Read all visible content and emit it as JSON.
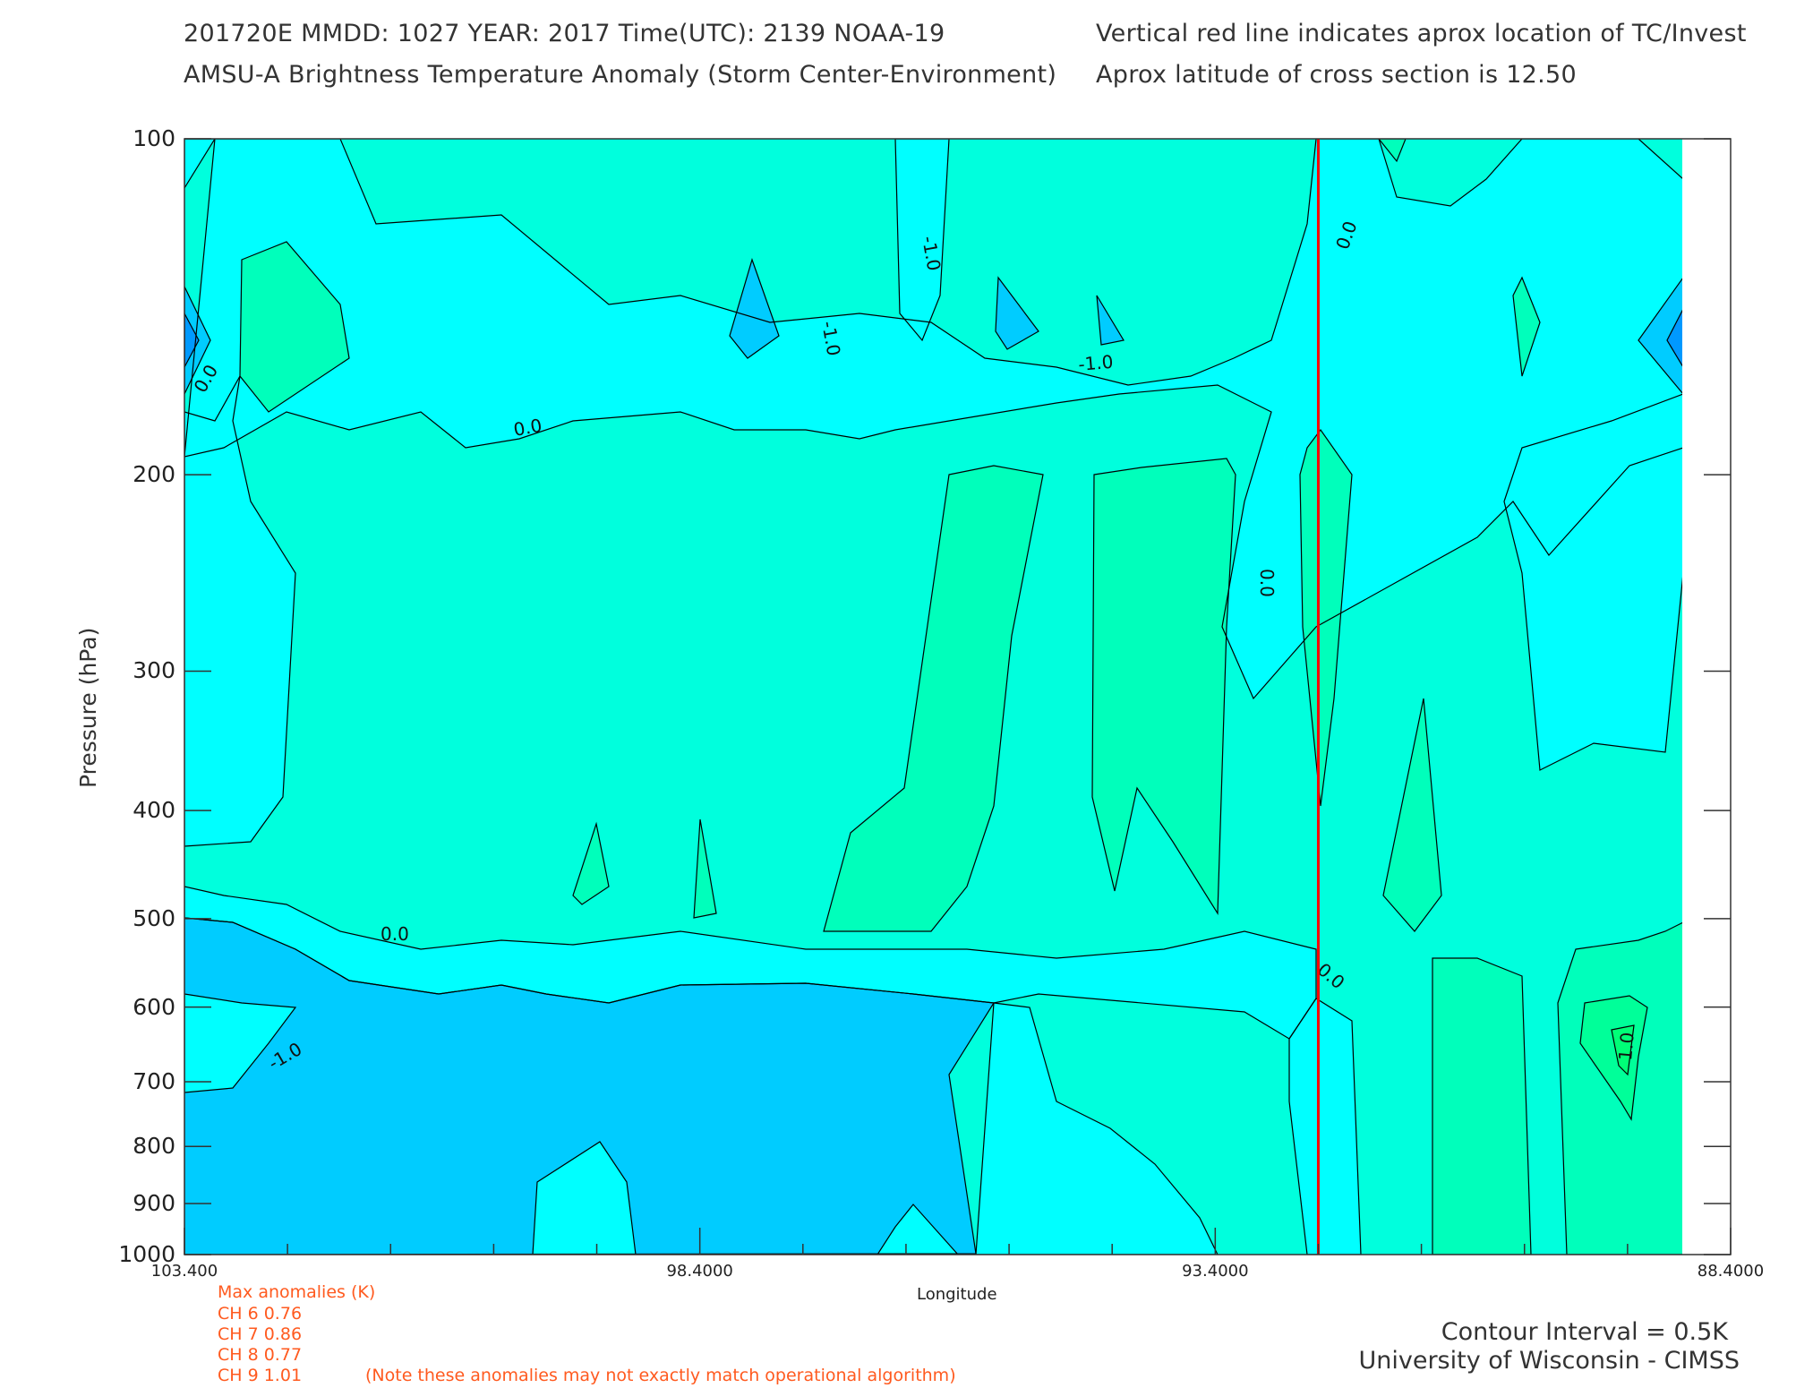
{
  "header": {
    "line1_left": "201720E  MMDD: 1027 YEAR: 2017 Time(UTC): 2139 NOAA-19",
    "line2_left": "AMSU-A Brightness Temperature Anomaly (Storm Center-Environment)",
    "line1_right": "Vertical red line indicates aprox location of TC/Invest",
    "line2_right": "Aprox latitude of cross section is 12.50"
  },
  "colors": {
    "level_m2": "#0099ff",
    "level_m1_5": "#00ccff",
    "level_m1": "#00ffff",
    "level_m0_5": "#00ffdd",
    "level_0": "#00ffbb",
    "level_0_5": "#00ff99",
    "level_1": "#00ff77",
    "tc_line": "#ff0000",
    "anomaly_text": "#ff5a1f"
  },
  "chart_data": {
    "type": "heatmap",
    "title": "AMSU-A Brightness Temperature Anomaly (Storm Center-Environment)",
    "xlabel": "Longitude",
    "ylabel": "Pressure (hPa)",
    "x_ticks": [
      "103.400",
      "98.4000",
      "93.4000",
      "88.4000"
    ],
    "y_ticks": [
      "100",
      "200",
      "300",
      "400",
      "500",
      "600",
      "700",
      "800",
      "900",
      "1000"
    ],
    "xlim": [
      103.4,
      88.4
    ],
    "ylim": [
      1000,
      100
    ],
    "y_scale": "log",
    "contour_labels": [
      "0.0",
      "-1.0",
      "-1.0",
      "-1.0",
      "0.0",
      "0.0",
      "0.0",
      "0.0",
      "0.0",
      "-1.0",
      "1.0"
    ],
    "tc_longitude": 92.4
  },
  "anomalies": {
    "title": "Max anomalies (K)",
    "channels": [
      {
        "label": "CH 6  0.76"
      },
      {
        "label": "CH 7  0.86"
      },
      {
        "label": "CH 8  0.77"
      },
      {
        "label": "CH 9  1.01"
      }
    ],
    "note": "(Note these anomalies may not exactly match operational algorithm)"
  },
  "footer": {
    "contour_interval": "Contour Interval = 0.5K",
    "credit": "University of Wisconsin - CIMSS"
  }
}
